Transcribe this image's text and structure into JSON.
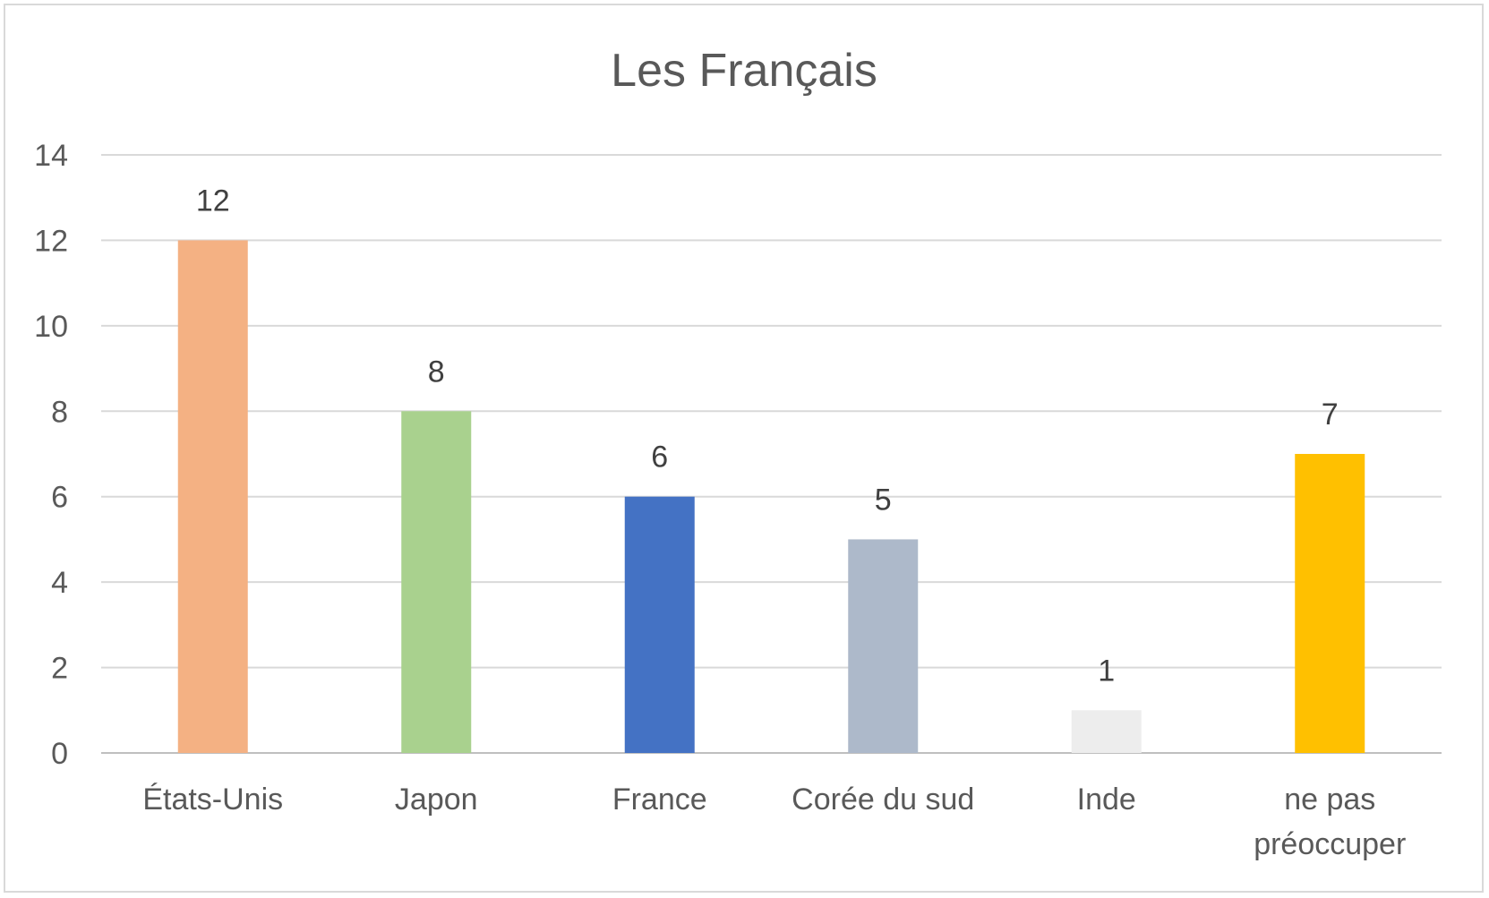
{
  "chart_data": {
    "type": "bar",
    "title": "Les Français",
    "categories": [
      "États-Unis",
      "Japon",
      "France",
      "Corée du sud",
      "Inde",
      "ne pas préoccuper"
    ],
    "values": [
      12,
      8,
      6,
      5,
      1,
      7
    ],
    "colors": [
      "#F4B183",
      "#A9D18E",
      "#4472C4",
      "#ADB9CA",
      "#EDEDED",
      "#FFC000"
    ],
    "ylim": [
      0,
      14
    ],
    "yticks": [
      0,
      2,
      4,
      6,
      8,
      10,
      12,
      14
    ],
    "grid": true,
    "data_labels": true
  }
}
